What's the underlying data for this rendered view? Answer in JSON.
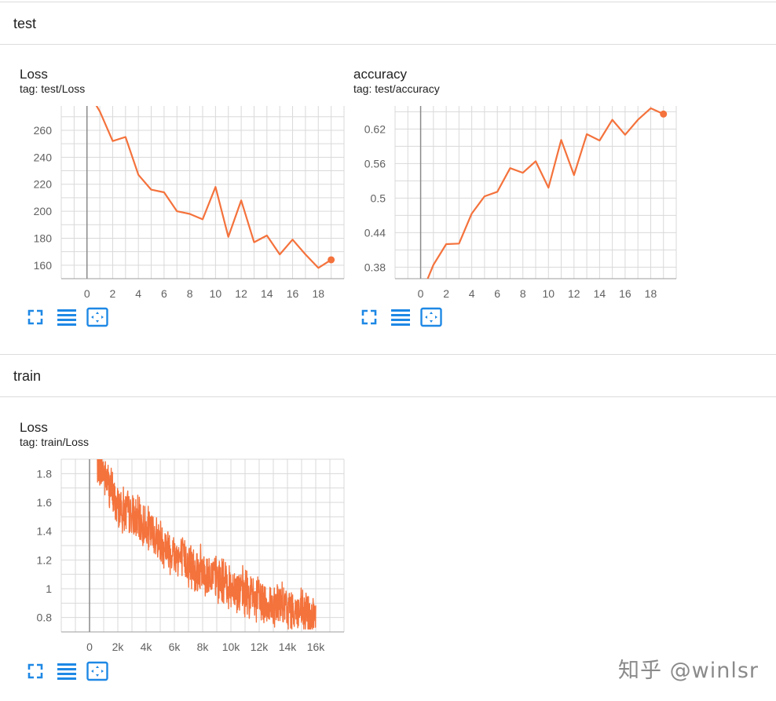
{
  "sections": [
    {
      "title": "test"
    },
    {
      "title": "train"
    }
  ],
  "cards": [
    {
      "title": "Loss",
      "tag": "tag: test/Loss"
    },
    {
      "title": "accuracy",
      "tag": "tag: test/accuracy"
    },
    {
      "title": "Loss",
      "tag": "tag: train/Loss"
    }
  ],
  "toolbar_icons": [
    "fullscreen-icon",
    "list-lines-icon",
    "fit-domain-icon"
  ],
  "colors": {
    "series": "#f4723c",
    "accent": "#1e88e5",
    "grid": "#d9d9d9",
    "zero_axis": "#8a8a8a"
  },
  "watermark": "知乎 @winlsr",
  "chart_data": [
    {
      "type": "line",
      "title": "Loss",
      "subtitle": "tag: test/Loss",
      "x": [
        0,
        1,
        2,
        3,
        4,
        5,
        6,
        7,
        8,
        9,
        10,
        11,
        12,
        13,
        14,
        15,
        16,
        17,
        18,
        19
      ],
      "y": [
        290,
        274,
        252,
        255,
        227,
        216,
        214,
        200,
        198,
        194,
        218,
        181,
        208,
        177,
        182,
        168,
        179,
        168,
        158,
        164
      ],
      "xlim": [
        -2,
        20
      ],
      "ylim": [
        150,
        278
      ],
      "xticks": [
        0,
        2,
        4,
        6,
        8,
        10,
        12,
        14,
        16,
        18
      ],
      "yticks": [
        160,
        180,
        200,
        220,
        240,
        260
      ],
      "ytick_labels": [
        "160",
        "180",
        "200",
        "220",
        "240",
        "260"
      ],
      "last_point_marker": true,
      "grid": true
    },
    {
      "type": "line",
      "title": "accuracy",
      "subtitle": "tag: test/accuracy",
      "x": [
        0,
        1,
        2,
        3,
        4,
        5,
        6,
        7,
        8,
        9,
        10,
        11,
        12,
        13,
        14,
        15,
        16,
        17,
        18,
        19
      ],
      "y": [
        0.33,
        0.384,
        0.42,
        0.421,
        0.473,
        0.503,
        0.511,
        0.552,
        0.544,
        0.564,
        0.518,
        0.601,
        0.54,
        0.611,
        0.6,
        0.636,
        0.61,
        0.636,
        0.656,
        0.646
      ],
      "xlim": [
        -2,
        20
      ],
      "ylim": [
        0.36,
        0.66
      ],
      "xticks": [
        0,
        2,
        4,
        6,
        8,
        10,
        12,
        14,
        16,
        18
      ],
      "yticks": [
        0.38,
        0.44,
        0.5,
        0.56,
        0.62
      ],
      "ytick_labels": [
        "0.38",
        "0.44",
        "0.5",
        "0.56",
        "0.62"
      ],
      "last_point_marker": true,
      "grid": true
    },
    {
      "type": "line",
      "title": "Loss",
      "subtitle": "tag: train/Loss",
      "x_range": [
        500,
        16000
      ],
      "trend": [
        [
          500,
          1.92
        ],
        [
          2000,
          1.58
        ],
        [
          4000,
          1.42
        ],
        [
          6000,
          1.24
        ],
        [
          8000,
          1.12
        ],
        [
          10000,
          1.02
        ],
        [
          12000,
          0.92
        ],
        [
          14000,
          0.86
        ],
        [
          16000,
          0.8
        ]
      ],
      "noise_amplitude": 0.16,
      "y_floor": 0.72,
      "xlim": [
        -2000,
        18000
      ],
      "ylim": [
        0.7,
        1.9
      ],
      "xticks": [
        0,
        2000,
        4000,
        6000,
        8000,
        10000,
        12000,
        14000,
        16000
      ],
      "xtick_labels": [
        "0",
        "2k",
        "4k",
        "6k",
        "8k",
        "10k",
        "12k",
        "14k",
        "16k"
      ],
      "yticks": [
        0.8,
        1,
        1.2,
        1.4,
        1.6,
        1.8
      ],
      "ytick_labels": [
        "0.8",
        "1",
        "1.2",
        "1.4",
        "1.6",
        "1.8"
      ],
      "grid": true
    }
  ]
}
